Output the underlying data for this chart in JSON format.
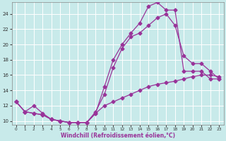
{
  "xlabel": "Windchill (Refroidissement éolien,°C)",
  "bg_color": "#c8eaea",
  "grid_color": "#aad4d4",
  "line_color": "#993399",
  "xlim": [
    -0.5,
    23.5
  ],
  "ylim": [
    9.5,
    25.5
  ],
  "xticks": [
    0,
    1,
    2,
    3,
    4,
    5,
    6,
    7,
    8,
    9,
    10,
    11,
    12,
    13,
    14,
    15,
    16,
    17,
    18,
    19,
    20,
    21,
    22,
    23
  ],
  "yticks": [
    10,
    12,
    14,
    16,
    18,
    20,
    22,
    24
  ],
  "line1_x": [
    0,
    1,
    2,
    3,
    4,
    5,
    6,
    7,
    8,
    9,
    10,
    11,
    12,
    13,
    14,
    15,
    16,
    17,
    18,
    19,
    20,
    21,
    22,
    23
  ],
  "line1_y": [
    12.5,
    11.2,
    11.0,
    10.8,
    10.2,
    10.0,
    9.8,
    9.8,
    9.8,
    11.0,
    14.5,
    18.0,
    20.0,
    21.5,
    22.8,
    25.0,
    25.5,
    24.5,
    24.5,
    16.5,
    16.5,
    16.5,
    15.5,
    15.5
  ],
  "line2_x": [
    0,
    1,
    2,
    3,
    4,
    5,
    6,
    7,
    8,
    9,
    10,
    11,
    12,
    13,
    14,
    15,
    16,
    17,
    18,
    19,
    20,
    21,
    22,
    23
  ],
  "line2_y": [
    12.5,
    11.2,
    12.0,
    11.0,
    10.2,
    10.0,
    9.8,
    9.8,
    9.8,
    11.2,
    13.5,
    17.0,
    19.5,
    21.0,
    21.5,
    22.5,
    23.5,
    24.0,
    22.5,
    18.5,
    17.5,
    17.5,
    16.5,
    15.5
  ],
  "line3_x": [
    0,
    1,
    2,
    3,
    4,
    5,
    6,
    7,
    8,
    9,
    10,
    11,
    12,
    13,
    14,
    15,
    16,
    17,
    18,
    19,
    20,
    21,
    22,
    23
  ],
  "line3_y": [
    12.5,
    11.2,
    11.0,
    10.8,
    10.2,
    10.0,
    9.8,
    9.8,
    9.8,
    11.0,
    12.0,
    12.5,
    13.0,
    13.5,
    14.0,
    14.5,
    14.8,
    15.0,
    15.2,
    15.5,
    15.8,
    16.0,
    16.0,
    15.8
  ]
}
